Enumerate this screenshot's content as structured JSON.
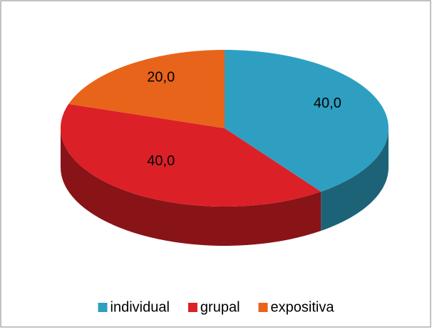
{
  "chart_data": {
    "type": "pie",
    "categories": [
      "individual",
      "grupal",
      "expositiva"
    ],
    "values": [
      40,
      40,
      20
    ],
    "value_labels": [
      "40,0",
      "40,0",
      "20,0"
    ],
    "colors": [
      "#2e9fc1",
      "#dc2027",
      "#e8641b"
    ],
    "legend": "bottom"
  }
}
